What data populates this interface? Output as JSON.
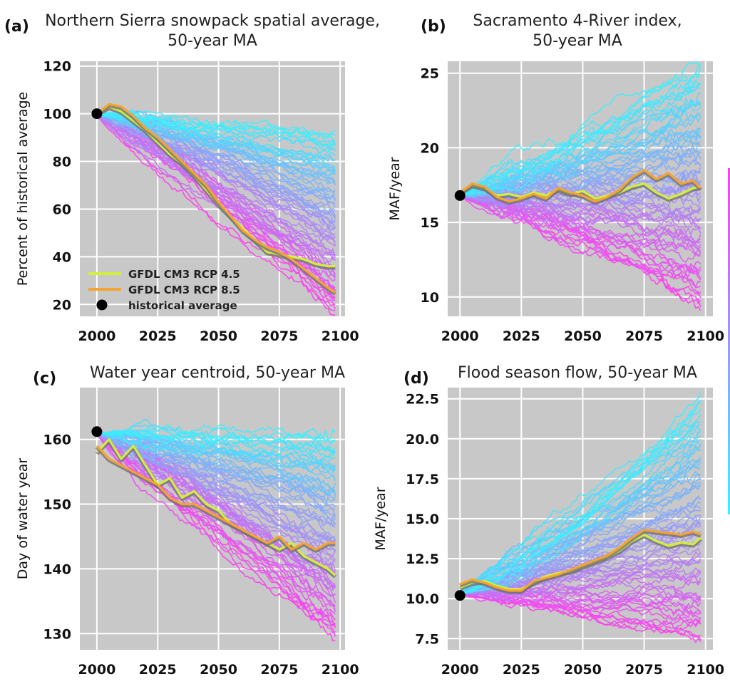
{
  "colors": {
    "rcp45": "#d4ee3e",
    "rcp85": "#f5a431",
    "historical": "#000000",
    "plot_bg": "#c8c8c8",
    "ensemble_low": "#ff3cf0",
    "ensemble_high": "#36f2ff"
  },
  "legend": {
    "rcp45": "GFDL CM3 RCP 4.5",
    "rcp85": "GFDL CM3 RCP 8.5",
    "historical": "historical average"
  },
  "chart_data": [
    {
      "type": "line",
      "letter": "(a)",
      "title_lines": [
        "Northern Sierra snowpack spatial average,",
        "50-year MA"
      ],
      "xlabel": "",
      "ylabel": "Percent of historical average",
      "xlim": [
        1993,
        2102
      ],
      "ylim": [
        15,
        122
      ],
      "xticks": [
        "2000",
        "2025",
        "2050",
        "2075",
        "2100"
      ],
      "yticks": [
        "20",
        "40",
        "60",
        "80",
        "100",
        "120"
      ],
      "grid": true,
      "legend_position": "lower-left",
      "historical_point": {
        "x": 2000,
        "y": 100
      },
      "ensemble": {
        "members": 70,
        "start": 2000,
        "end": 2098,
        "start_value": 100,
        "end_min": 16,
        "end_max": 92,
        "noise": 1.6
      },
      "series": [
        {
          "name": "GFDL CM3 RCP 4.5",
          "color_key": "rcp45",
          "x": [
            2000,
            2005,
            2010,
            2015,
            2020,
            2025,
            2030,
            2035,
            2040,
            2045,
            2050,
            2055,
            2060,
            2065,
            2070,
            2075,
            2080,
            2085,
            2090,
            2095,
            2098
          ],
          "values": [
            100,
            103,
            101,
            97,
            93,
            88,
            83,
            79,
            74,
            68,
            62,
            57,
            52,
            47,
            42,
            41,
            40,
            39,
            37,
            36,
            36
          ]
        },
        {
          "name": "GFDL CM3 RCP 8.5",
          "color_key": "rcp85",
          "x": [
            2000,
            2005,
            2010,
            2015,
            2020,
            2025,
            2030,
            2035,
            2040,
            2045,
            2050,
            2055,
            2060,
            2065,
            2070,
            2075,
            2080,
            2085,
            2090,
            2095,
            2098
          ],
          "values": [
            100,
            104,
            103,
            99,
            94,
            90,
            85,
            80,
            75,
            70,
            63,
            57,
            51,
            47,
            44,
            42,
            39,
            35,
            31,
            27,
            25
          ]
        }
      ]
    },
    {
      "type": "line",
      "letter": "(b)",
      "title_lines": [
        "Sacramento 4-River index,",
        "50-year MA"
      ],
      "xlabel": "",
      "ylabel": "MAF/year",
      "xlim": [
        1995,
        2103
      ],
      "ylim": [
        8.7,
        25.8
      ],
      "xticks": [
        "2000",
        "2025",
        "2050",
        "2075",
        "2100"
      ],
      "yticks": [
        "10",
        "15",
        "20",
        "25"
      ],
      "grid": true,
      "legend_position": "",
      "historical_point": {
        "x": 2000,
        "y": 16.8
      },
      "ensemble": {
        "members": 70,
        "start": 2000,
        "end": 2098,
        "start_value": 16.8,
        "end_min": 9.5,
        "end_max": 25.5,
        "noise": 0.35
      },
      "series": [
        {
          "name": "GFDL CM3 RCP 4.5",
          "color_key": "rcp45",
          "x": [
            2000,
            2005,
            2010,
            2015,
            2020,
            2025,
            2030,
            2035,
            2040,
            2045,
            2050,
            2055,
            2060,
            2065,
            2070,
            2075,
            2080,
            2085,
            2090,
            2095,
            2098
          ],
          "values": [
            17.0,
            17.5,
            17.3,
            16.8,
            16.9,
            16.7,
            17.0,
            16.8,
            17.2,
            16.9,
            17.1,
            16.6,
            16.8,
            17.0,
            17.4,
            17.6,
            17.0,
            16.6,
            16.9,
            17.3,
            17.4
          ]
        },
        {
          "name": "GFDL CM3 RCP 8.5",
          "color_key": "rcp85",
          "x": [
            2000,
            2005,
            2010,
            2015,
            2020,
            2025,
            2030,
            2035,
            2040,
            2045,
            2050,
            2055,
            2060,
            2065,
            2070,
            2075,
            2080,
            2085,
            2090,
            2095,
            2098
          ],
          "values": [
            17.0,
            17.6,
            17.4,
            16.7,
            16.4,
            16.6,
            16.9,
            16.6,
            17.3,
            17.0,
            16.8,
            16.4,
            16.7,
            17.2,
            18.0,
            18.5,
            17.9,
            18.3,
            17.6,
            17.8,
            17.3
          ]
        }
      ]
    },
    {
      "type": "line",
      "letter": "(c)",
      "title_lines": [
        "Water year centroid, 50-year MA"
      ],
      "xlabel": "",
      "ylabel": "Day of water year",
      "xlim": [
        1993,
        2102
      ],
      "ylim": [
        127.5,
        168
      ],
      "xticks": [
        "2000",
        "2025",
        "2050",
        "2075",
        "2100"
      ],
      "yticks": [
        "130",
        "140",
        "150",
        "160"
      ],
      "grid": true,
      "legend_position": "",
      "historical_point": {
        "x": 2000,
        "y": 161.2
      },
      "ensemble": {
        "members": 70,
        "start": 2000,
        "end": 2098,
        "start_value": 161,
        "end_min": 129,
        "end_max": 161,
        "noise": 0.7
      },
      "series": [
        {
          "name": "GFDL CM3 RCP 4.5",
          "color_key": "rcp45",
          "x": [
            2000,
            2005,
            2010,
            2015,
            2020,
            2025,
            2030,
            2035,
            2040,
            2045,
            2050,
            2055,
            2060,
            2065,
            2070,
            2075,
            2080,
            2085,
            2090,
            2095,
            2098
          ],
          "values": [
            158,
            160,
            157,
            159,
            156,
            153,
            154,
            151,
            152,
            150,
            149,
            147,
            146,
            145,
            144,
            143,
            144,
            142,
            141,
            140,
            139
          ]
        },
        {
          "name": "GFDL CM3 RCP 8.5",
          "color_key": "rcp85",
          "x": [
            2000,
            2005,
            2010,
            2015,
            2020,
            2025,
            2030,
            2035,
            2040,
            2045,
            2050,
            2055,
            2060,
            2065,
            2070,
            2075,
            2080,
            2085,
            2090,
            2095,
            2098
          ],
          "values": [
            159,
            157,
            156,
            155,
            154,
            153,
            151,
            150,
            150,
            149,
            148,
            147,
            146,
            145,
            144,
            145,
            143,
            144,
            143,
            144,
            144
          ]
        }
      ]
    },
    {
      "type": "line",
      "letter": "(d)",
      "title_lines": [
        "Flood season flow, 50-year MA"
      ],
      "xlabel": "",
      "ylabel": "MAF/year",
      "xlim": [
        1995,
        2103
      ],
      "ylim": [
        6.8,
        23.2
      ],
      "xticks": [
        "2000",
        "2025",
        "2050",
        "2075",
        "2100"
      ],
      "yticks": [
        "7.5",
        "10.0",
        "12.5",
        "15.0",
        "17.5",
        "20.0",
        "22.5"
      ],
      "grid": true,
      "legend_position": "",
      "historical_point": {
        "x": 2000,
        "y": 10.2
      },
      "ensemble": {
        "members": 70,
        "start": 2000,
        "end": 2098,
        "start_value": 10.3,
        "end_min": 7.2,
        "end_max": 22.5,
        "noise": 0.25
      },
      "series": [
        {
          "name": "GFDL CM3 RCP 4.5",
          "color_key": "rcp45",
          "x": [
            2000,
            2005,
            2010,
            2015,
            2020,
            2025,
            2030,
            2035,
            2040,
            2045,
            2050,
            2055,
            2060,
            2065,
            2070,
            2075,
            2080,
            2085,
            2090,
            2095,
            2098
          ],
          "values": [
            10.7,
            11.0,
            11.1,
            10.8,
            10.6,
            10.6,
            11.0,
            11.4,
            11.6,
            11.7,
            12.0,
            12.3,
            12.6,
            13.0,
            13.6,
            14.0,
            13.6,
            13.3,
            13.5,
            13.4,
            13.8
          ]
        },
        {
          "name": "GFDL CM3 RCP 8.5",
          "color_key": "rcp85",
          "x": [
            2000,
            2005,
            2010,
            2015,
            2020,
            2025,
            2030,
            2035,
            2040,
            2045,
            2050,
            2055,
            2060,
            2065,
            2070,
            2075,
            2080,
            2085,
            2090,
            2095,
            2098
          ],
          "values": [
            10.9,
            11.2,
            11.0,
            10.7,
            10.5,
            10.5,
            11.1,
            11.3,
            11.5,
            11.8,
            12.1,
            12.4,
            12.7,
            13.2,
            13.8,
            14.3,
            14.2,
            14.1,
            14.0,
            14.2,
            14.0
          ]
        }
      ]
    }
  ]
}
